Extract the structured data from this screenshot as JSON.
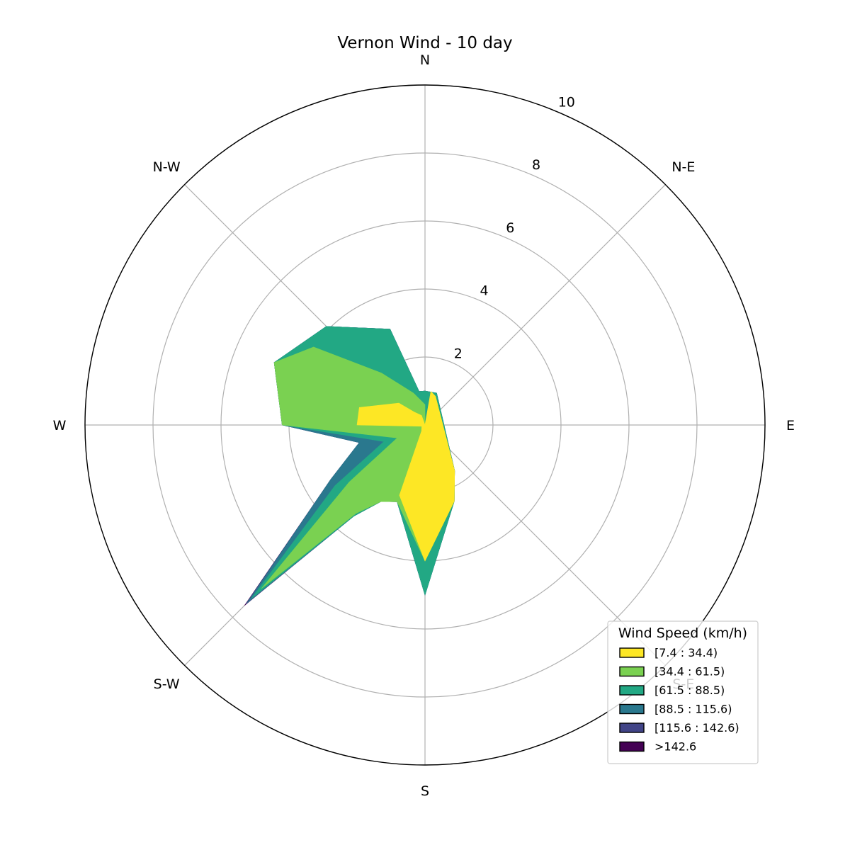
{
  "chart_data": {
    "type": "area",
    "subtype": "wind-rose",
    "title": "Vernon Wind - 10 day",
    "direction_labels": [
      "N",
      "N-E",
      "E",
      "S-E",
      "S",
      "S-W",
      "W",
      "N-W"
    ],
    "radial_ticks": [
      "2",
      "4",
      "6",
      "8",
      "10"
    ],
    "rlim": [
      0,
      10
    ],
    "grid": true,
    "directions_deg": [
      0,
      22.5,
      45,
      67.5,
      90,
      112.5,
      135,
      157.5,
      180,
      202.5,
      225,
      247.5,
      270,
      292.5,
      315,
      337.5
    ],
    "legend": {
      "title": "Wind Speed (km/h)",
      "placement": "lower-right"
    },
    "series": [
      {
        "name": "[7.4 : 34.4)",
        "color": "#fde725",
        "values": [
          0,
          0,
          0,
          0,
          0,
          2.0,
          0,
          0,
          4.0,
          2.2,
          0,
          0,
          0,
          0,
          0,
          0
        ]
      },
      {
        "name": "[34.4 : 61.5)",
        "color": "#7ad151",
        "values": [
          0,
          0,
          0,
          0,
          0,
          0,
          0,
          0,
          0,
          0.3,
          0,
          0.8,
          3.2,
          2.5,
          3.3,
          1.5
        ]
      },
      {
        "name": "[61.5 : 88.5)",
        "color": "#22a884",
        "values": [
          0,
          0,
          0,
          0,
          0,
          0,
          0,
          0,
          1.0,
          0.3,
          0,
          0,
          0,
          0.5,
          0.8,
          0.5
        ]
      },
      {
        "name": "[88.5 : 115.6)",
        "color": "#2a788e",
        "values": [
          0,
          0,
          0,
          0,
          0,
          0,
          0,
          0,
          0,
          0,
          0,
          0,
          0,
          0,
          0,
          0
        ]
      },
      {
        "name": "[115.6 : 142.6)",
        "color": "#414487",
        "values": [
          0,
          0,
          0,
          0,
          0,
          0,
          0,
          0,
          0,
          0,
          0,
          0,
          0,
          0,
          0,
          0
        ]
      },
      {
        "name": ">142.6",
        "color": "#440154",
        "values": [
          0,
          0,
          0,
          0,
          0,
          0,
          0,
          0,
          0,
          0,
          0,
          0,
          0,
          0,
          0,
          0
        ]
      }
    ],
    "detail_series": [
      {
        "name": "[7.4 : 34.4)",
        "points": [
          [
            0,
            0
          ],
          [
            10,
            1.0
          ],
          [
            20,
            0.9
          ],
          [
            147,
            1.6
          ],
          [
            159,
            2.4
          ],
          [
            180,
            4.0
          ],
          [
            200,
            2.2
          ],
          [
            210,
            0.2
          ],
          [
            248,
            0.1
          ],
          [
            270,
            2.0
          ],
          [
            285,
            2.0
          ],
          [
            310,
            1.0
          ],
          [
            320,
            0.5
          ],
          [
            340,
            0.3
          ],
          [
            360,
            0
          ]
        ]
      },
      {
        "name": "[34.4 : 61.5)",
        "points": [
          [
            0,
            0
          ],
          [
            10,
            1.0
          ],
          [
            20,
            0.9
          ],
          [
            147,
            1.6
          ],
          [
            159,
            2.4
          ],
          [
            180,
            4.0
          ],
          [
            200,
            2.4
          ],
          [
            210,
            2.6
          ],
          [
            218,
            3.3
          ],
          [
            225,
            6.8
          ],
          [
            233,
            2.8
          ],
          [
            245,
            0.9
          ],
          [
            270,
            4.2
          ],
          [
            292.5,
            4.8
          ],
          [
            305,
            4.0
          ],
          [
            320,
            2.0
          ],
          [
            340,
            1.0
          ],
          [
            360,
            0.6
          ],
          [
            360,
            0
          ]
        ]
      },
      {
        "name": "[61.5 : 88.5)",
        "points": [
          [
            0,
            0
          ],
          [
            0,
            1.0
          ],
          [
            20,
            1.0
          ],
          [
            147,
            1.6
          ],
          [
            159,
            2.4
          ],
          [
            180,
            5.0
          ],
          [
            200,
            2.4
          ],
          [
            210,
            2.6
          ],
          [
            218,
            3.4
          ],
          [
            225,
            7.2
          ],
          [
            236,
            3.2
          ],
          [
            248,
            1.3
          ],
          [
            270,
            4.2
          ],
          [
            292.5,
            4.8
          ],
          [
            315,
            4.1
          ],
          [
            340,
            3.0
          ],
          [
            350,
            1.0
          ],
          [
            360,
            1.0
          ],
          [
            360,
            0
          ]
        ]
      },
      {
        "name": "[88.5 : 115.6)",
        "points": [
          [
            0,
            0
          ],
          [
            0,
            1.0
          ],
          [
            20,
            1.0
          ],
          [
            147,
            1.6
          ],
          [
            159,
            2.4
          ],
          [
            180,
            5.0
          ],
          [
            200,
            2.4
          ],
          [
            210,
            2.6
          ],
          [
            218,
            3.4
          ],
          [
            225,
            7.4
          ],
          [
            240,
            3.2
          ],
          [
            255,
            2.0
          ],
          [
            270,
            4.2
          ],
          [
            292.5,
            4.8
          ],
          [
            315,
            4.1
          ],
          [
            340,
            3.0
          ],
          [
            350,
            1.0
          ],
          [
            360,
            1.0
          ],
          [
            360,
            0
          ]
        ]
      },
      {
        "name": "[115.6 : 142.6)",
        "points": [
          [
            0,
            0
          ],
          [
            0,
            1.0
          ],
          [
            20,
            1.0
          ],
          [
            147,
            1.6
          ],
          [
            159,
            2.4
          ],
          [
            180,
            5.0
          ],
          [
            200,
            2.4
          ],
          [
            210,
            2.6
          ],
          [
            218,
            3.4
          ],
          [
            225,
            7.45
          ],
          [
            240,
            3.2
          ],
          [
            255,
            2.0
          ],
          [
            270,
            4.2
          ],
          [
            292.5,
            4.8
          ],
          [
            315,
            4.1
          ],
          [
            340,
            3.0
          ],
          [
            350,
            1.0
          ],
          [
            360,
            1.0
          ],
          [
            360,
            0
          ]
        ]
      },
      {
        "name": ">142.6",
        "points": [
          [
            0,
            0
          ],
          [
            0,
            1.0
          ],
          [
            20,
            1.0
          ],
          [
            147,
            1.6
          ],
          [
            159,
            2.4
          ],
          [
            180,
            5.0
          ],
          [
            200,
            2.4
          ],
          [
            210,
            2.6
          ],
          [
            218,
            3.4
          ],
          [
            225,
            7.5
          ],
          [
            240,
            3.2
          ],
          [
            255,
            2.0
          ],
          [
            270,
            4.2
          ],
          [
            292.5,
            4.8
          ],
          [
            315,
            4.1
          ],
          [
            340,
            3.0
          ],
          [
            350,
            1.0
          ],
          [
            360,
            1.0
          ],
          [
            360,
            0
          ]
        ]
      }
    ]
  }
}
